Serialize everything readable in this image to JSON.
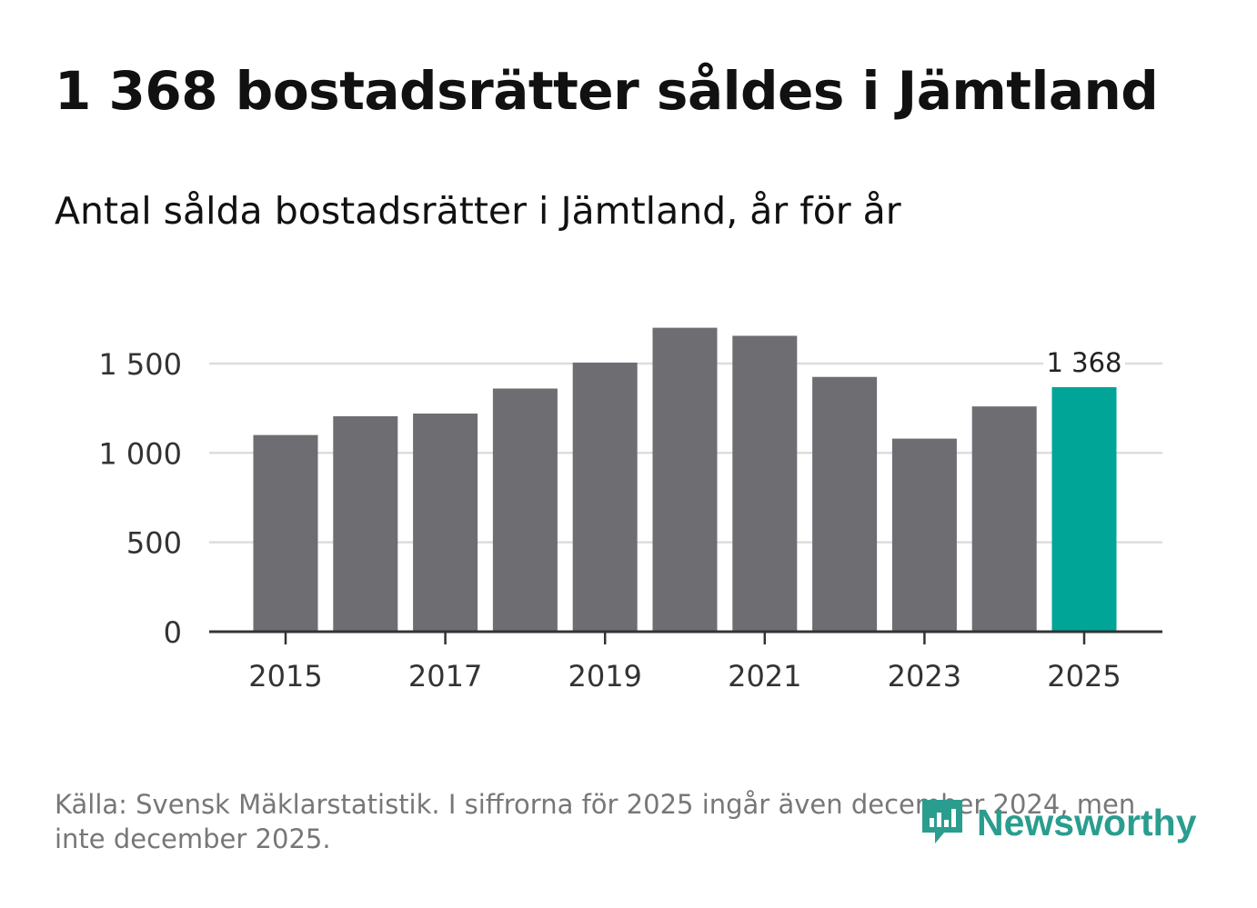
{
  "title": "1 368 bostadsrätter såldes i Jämtland",
  "subtitle": "Antal sålda bostadsrätter i Jämtland, år för år",
  "source": "Källa: Svensk Mäklarstatistik. I siffrorna för 2025 ingår även december 2024, men inte december 2025.",
  "brand": {
    "name": "Newsworthy",
    "logo_icon": "newsworthy-logo-icon"
  },
  "colors": {
    "bar": "#6e6d72",
    "highlight": "#00a598",
    "grid": "#dddddd",
    "axis": "#333333",
    "brand": "#2a9d8f"
  },
  "chart_data": {
    "type": "bar",
    "title": "Antal sålda bostadsrätter i Jämtland, år för år",
    "xlabel": "",
    "ylabel": "",
    "categories": [
      "2015",
      "2016",
      "2017",
      "2018",
      "2019",
      "2020",
      "2021",
      "2022",
      "2023",
      "2024",
      "2025"
    ],
    "values": [
      1100,
      1205,
      1220,
      1360,
      1505,
      1700,
      1655,
      1425,
      1080,
      1260,
      1368
    ],
    "highlight_index": 10,
    "data_label": {
      "index": 10,
      "text": "1 368"
    },
    "ylim": [
      0,
      1750
    ],
    "yticks": [
      0,
      500,
      1000,
      1500
    ],
    "ytick_labels": [
      "0",
      "500",
      "1 000",
      "1 500"
    ],
    "xtick_labels": [
      "2015",
      "2017",
      "2019",
      "2021",
      "2023",
      "2025"
    ],
    "grid": true,
    "legend": "none"
  }
}
